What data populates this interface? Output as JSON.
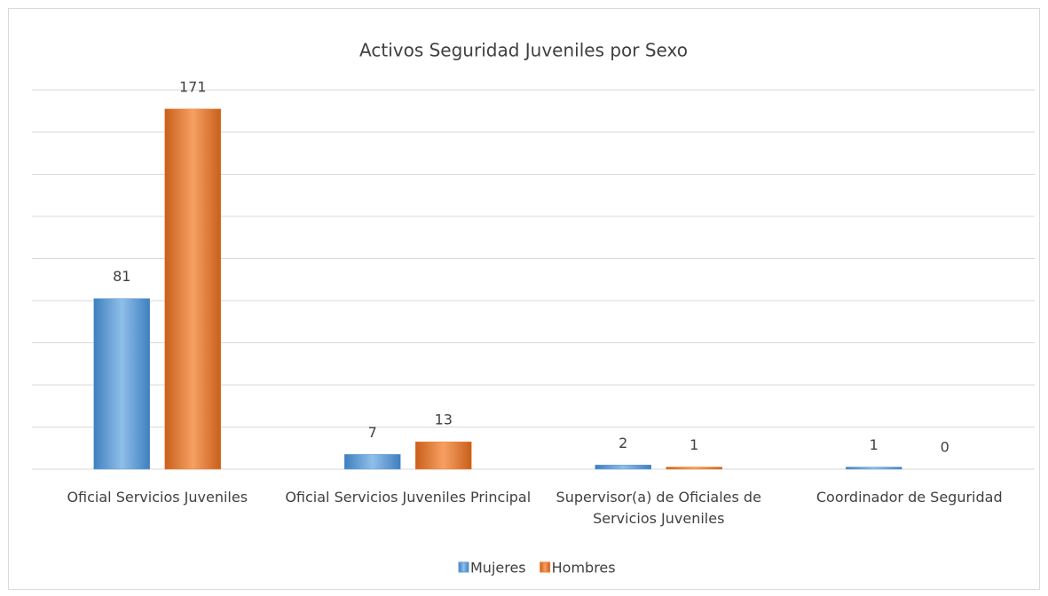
{
  "chart_data": {
    "type": "bar",
    "title": "Activos Seguridad Juveniles por Sexo",
    "categories": [
      "Oficial Servicios Juveniles",
      "Oficial Servicios Juveniles Principal",
      "Supervisor(a) de Oficiales de Servicios Juveniles",
      "Coordinador de Seguridad"
    ],
    "series": [
      {
        "name": "Mujeres",
        "color": "#5b9bd5",
        "values": [
          81,
          7,
          2,
          1
        ]
      },
      {
        "name": "Hombres",
        "color": "#ed7d31",
        "values": [
          171,
          13,
          1,
          0
        ]
      }
    ],
    "ylim": [
      0,
      180
    ],
    "yticks": [
      0,
      20,
      40,
      60,
      80,
      100,
      120,
      140,
      160,
      180
    ],
    "grid": true,
    "legend": "bottom"
  }
}
